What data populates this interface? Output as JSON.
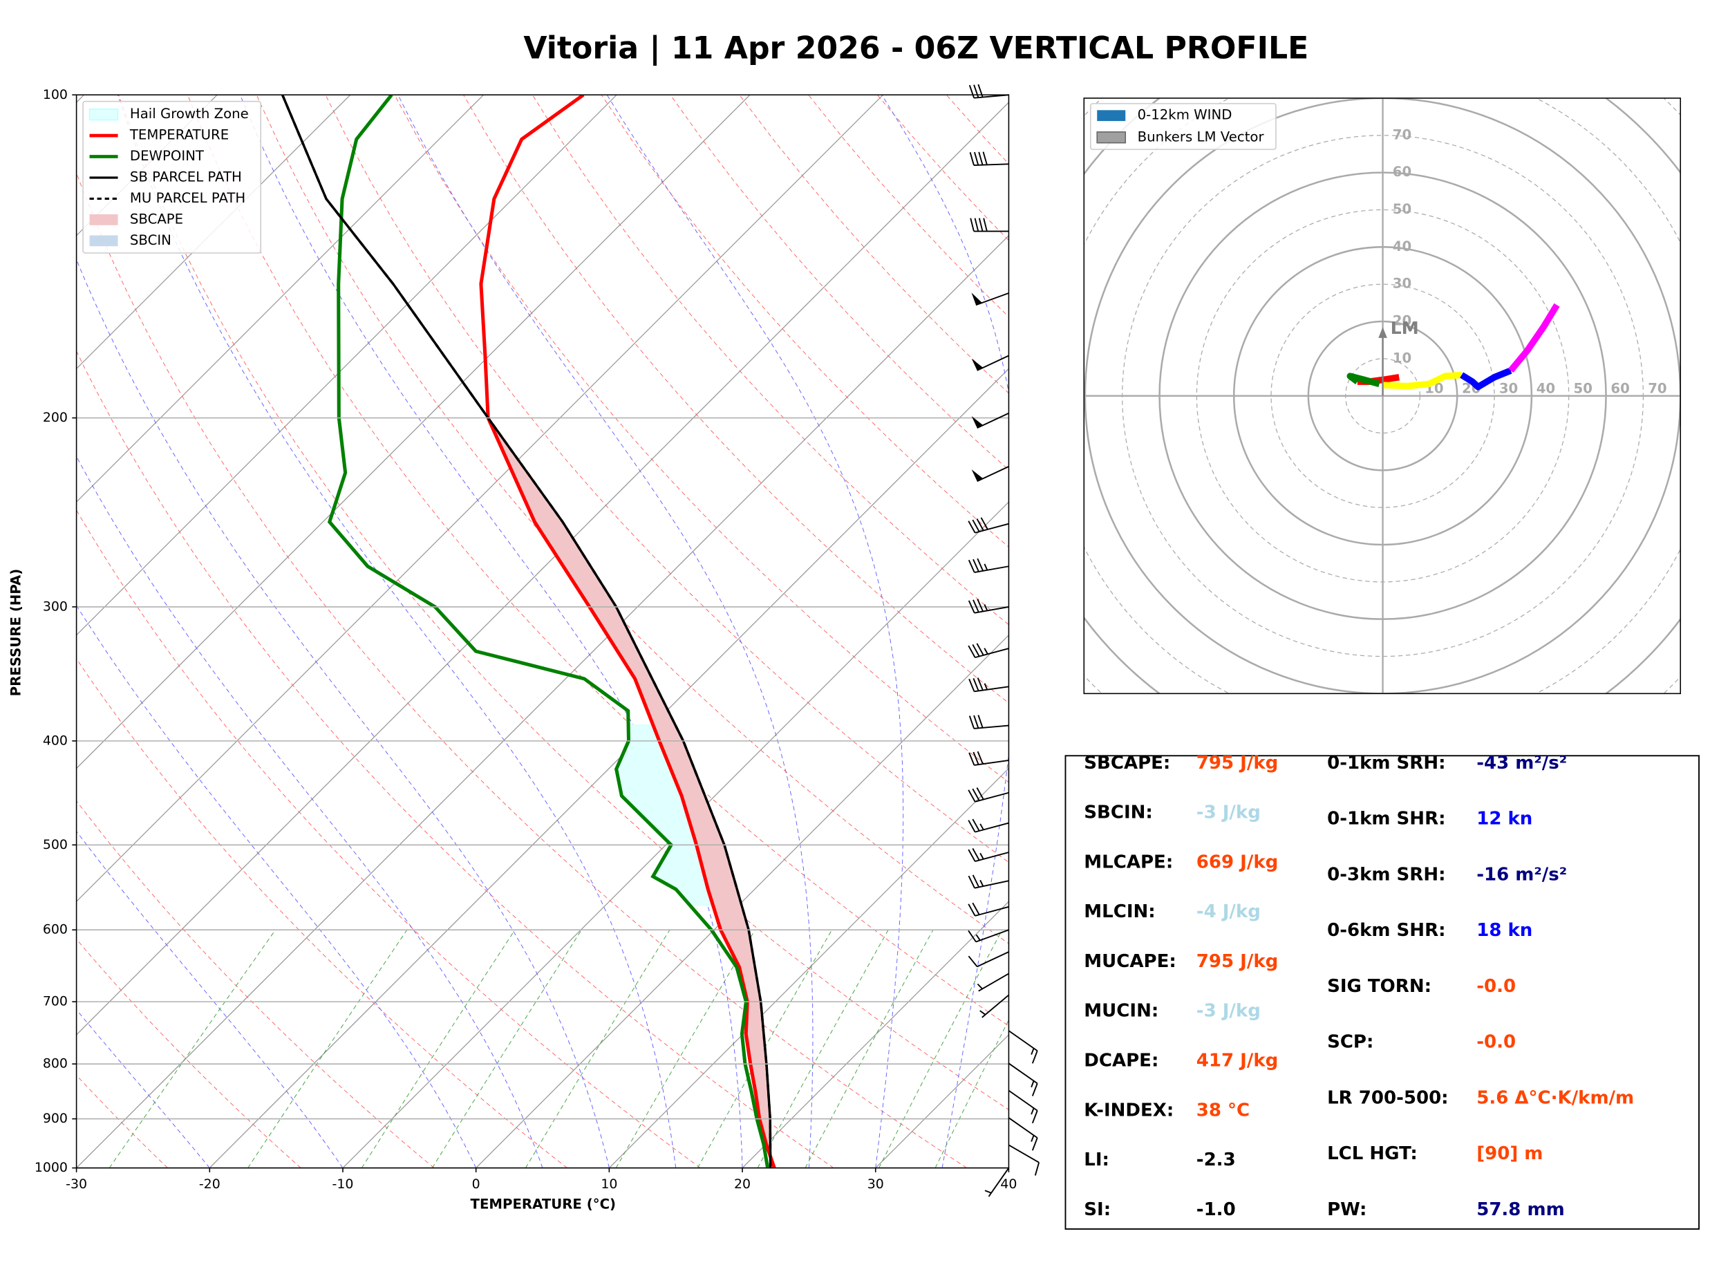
{
  "title": "Vitoria | 11 Apr 2026 - 06Z VERTICAL PROFILE",
  "chart_data": [
    {
      "type": "skewt",
      "xlabel": "TEMPERATURE (°C)",
      "ylabel": "PRESSURE (HPA)",
      "xlim": [
        -30,
        40
      ],
      "ylim": [
        1000,
        100
      ],
      "xticks": [
        -30,
        -20,
        -10,
        0,
        10,
        20,
        30,
        40
      ],
      "yticks": [
        100,
        200,
        300,
        400,
        500,
        600,
        700,
        800,
        900,
        1000
      ],
      "log_y": true,
      "grid": true,
      "series": [
        {
          "name": "TEMPERATURE",
          "color": "#ff0000",
          "style": "solid",
          "pressure": [
            1000,
            950,
            900,
            850,
            800,
            750,
            700,
            650,
            600,
            550,
            500,
            450,
            400,
            350,
            300,
            250,
            200,
            175,
            150,
            125,
            110,
            100
          ],
          "values": [
            22.4,
            20.0,
            17.6,
            15.3,
            12.8,
            10.2,
            7.9,
            4.7,
            0.5,
            -3.5,
            -7.7,
            -12.5,
            -18.3,
            -24.8,
            -33.6,
            -44.1,
            -55.4,
            -60.3,
            -66.0,
            -71.4,
            -73.8,
            -72.5
          ]
        },
        {
          "name": "DEWPOINT",
          "color": "#008000",
          "style": "solid",
          "pressure": [
            1000,
            950,
            900,
            850,
            800,
            750,
            700,
            650,
            600,
            550,
            535,
            500,
            450,
            425,
            400,
            375,
            350,
            330,
            300,
            275,
            250,
            225,
            200,
            150,
            125,
            110,
            100
          ],
          "values": [
            21.9,
            19.8,
            17.4,
            15.0,
            12.4,
            9.9,
            7.8,
            4.5,
            -0.2,
            -5.9,
            -8.6,
            -9.6,
            -17.0,
            -19.4,
            -20.6,
            -22.9,
            -28.6,
            -38.8,
            -45.2,
            -53.3,
            -59.5,
            -62.0,
            -66.6,
            -76.7,
            -82.8,
            -86.2,
            -86.9
          ]
        },
        {
          "name": "SB PARCEL PATH",
          "color": "#000000",
          "style": "solid",
          "pressure": [
            1000,
            900,
            800,
            700,
            600,
            500,
            400,
            300,
            250,
            200,
            150,
            125,
            100
          ],
          "values": [
            22.1,
            18.4,
            14.0,
            8.9,
            2.6,
            -5.6,
            -16.5,
            -31.6,
            -42.0,
            -55.4,
            -72.6,
            -84.0,
            -95.1
          ]
        },
        {
          "name": "MU PARCEL PATH",
          "color": "#000000",
          "style": "dashed",
          "pressure": [
            1000,
            900,
            800,
            700,
            600,
            500,
            400,
            300,
            250,
            200,
            150,
            125,
            100
          ],
          "values": [
            22.1,
            18.4,
            14.0,
            8.9,
            2.6,
            -5.6,
            -16.5,
            -31.6,
            -42.0,
            -55.4,
            -72.6,
            -84.0,
            -95.1
          ]
        }
      ],
      "areas": [
        {
          "name": "Hail Growth Zone",
          "color": "#e0ffff",
          "pressure": [
            570,
            385
          ]
        },
        {
          "name": "SBCAPE",
          "color": "#f2c6c8"
        },
        {
          "name": "SBCIN",
          "color": "#c6d9ec"
        }
      ],
      "wind_barbs": {
        "pressure": [
          100,
          116,
          134,
          153,
          175,
          198,
          222,
          251,
          275,
          300,
          328,
          356,
          387,
          417,
          447,
          477,
          508,
          540,
          571,
          600,
          629,
          659,
          690,
          745,
          799,
          847,
          898,
          952,
          1000
        ],
        "speed": [
          30,
          40,
          40,
          50,
          50,
          50,
          50,
          40,
          35,
          35,
          35,
          35,
          30,
          30,
          30,
          25,
          25,
          25,
          20,
          15,
          10,
          5,
          5,
          15,
          15,
          15,
          15,
          10,
          5
        ],
        "direction": [
          265,
          268,
          270,
          250,
          245,
          245,
          245,
          255,
          260,
          260,
          255,
          262,
          265,
          262,
          255,
          255,
          255,
          258,
          255,
          250,
          245,
          240,
          230,
          125,
          125,
          125,
          125,
          120,
          215
        ]
      }
    },
    {
      "type": "hodograph",
      "rlim": [
        0,
        80
      ],
      "rticks": [
        10,
        20,
        30,
        40,
        50,
        60,
        70
      ],
      "legend": [
        {
          "label": "0-12km WIND",
          "color": "#1f77b4"
        },
        {
          "label": "Bunkers LM Vector",
          "color": "#a0a0a0"
        }
      ],
      "series": [
        {
          "color": "#ff0000",
          "u": [
            4.4,
            0.6,
            -3.8,
            -6.8
          ],
          "v": [
            5.0,
            4.4,
            3.8,
            3.8
          ]
        },
        {
          "color": "#008000",
          "u": [
            -6.8,
            -8.8,
            -5.3,
            -0.9
          ],
          "v": [
            3.8,
            5.3,
            4.4,
            3.2
          ]
        },
        {
          "color": "#ffff00",
          "u": [
            0,
            6.5,
            12.4,
            16.8,
            21.2
          ],
          "v": [
            2.9,
            2.6,
            3.2,
            5.3,
            5.6
          ]
        },
        {
          "color": "#0000ff",
          "u": [
            21.2,
            24.1,
            25.6,
            30,
            34.4
          ],
          "v": [
            5.6,
            3.8,
            2.4,
            5,
            6.8
          ]
        },
        {
          "color": "#ff00ff",
          "u": [
            34.4,
            38.8,
            43.2,
            46.8
          ],
          "v": [
            6.8,
            12.1,
            18.5,
            24.4
          ]
        }
      ],
      "bunkers_lm": {
        "label": "LM",
        "color": "#808080",
        "u": 0,
        "v": 18.5
      }
    }
  ],
  "stats": {
    "left": [
      {
        "label": "SBCAPE:",
        "value": "795 J/kg",
        "color": "#ff4500"
      },
      {
        "label": "SBCIN:",
        "value": "-3 J/kg",
        "color": "#add8e6"
      },
      {
        "label": "MLCAPE:",
        "value": "669 J/kg",
        "color": "#ff4500"
      },
      {
        "label": "MLCIN:",
        "value": "-4 J/kg",
        "color": "#add8e6"
      },
      {
        "label": "MUCAPE:",
        "value": "795 J/kg",
        "color": "#ff4500"
      },
      {
        "label": "MUCIN:",
        "value": "-3 J/kg",
        "color": "#add8e6"
      },
      {
        "label": "DCAPE:",
        "value": "417 J/kg",
        "color": "#ff4500"
      },
      {
        "label": "K-INDEX:",
        "value": "38 °C",
        "color": "#ff4500"
      },
      {
        "label": "LI:",
        "value": "-2.3",
        "color": "#000000"
      },
      {
        "label": "SI:",
        "value": "-1.0",
        "color": "#000000"
      }
    ],
    "right": [
      {
        "label": "0-1km SRH:",
        "value": "-43 m²/s²",
        "color": "#000080"
      },
      {
        "label": "0-1km SHR:",
        "value": "12 kn",
        "color": "#0000ff"
      },
      {
        "label": "0-3km SRH:",
        "value": "-16 m²/s²",
        "color": "#000080"
      },
      {
        "label": "0-6km SHR:",
        "value": "18 kn",
        "color": "#0000ff"
      },
      {
        "label": "SIG TORN:",
        "value": "-0.0",
        "color": "#ff4500"
      },
      {
        "label": "SCP:",
        "value": "-0.0",
        "color": "#ff4500"
      },
      {
        "label": "LR 700-500:",
        "value": "5.6 Δ°C·K/km/m",
        "color": "#ff4500"
      },
      {
        "label": "LCL HGT:",
        "value": "[90] m",
        "color": "#ff4500"
      },
      {
        "label": "PW:",
        "value": "57.8 mm",
        "color": "#000080"
      }
    ]
  }
}
